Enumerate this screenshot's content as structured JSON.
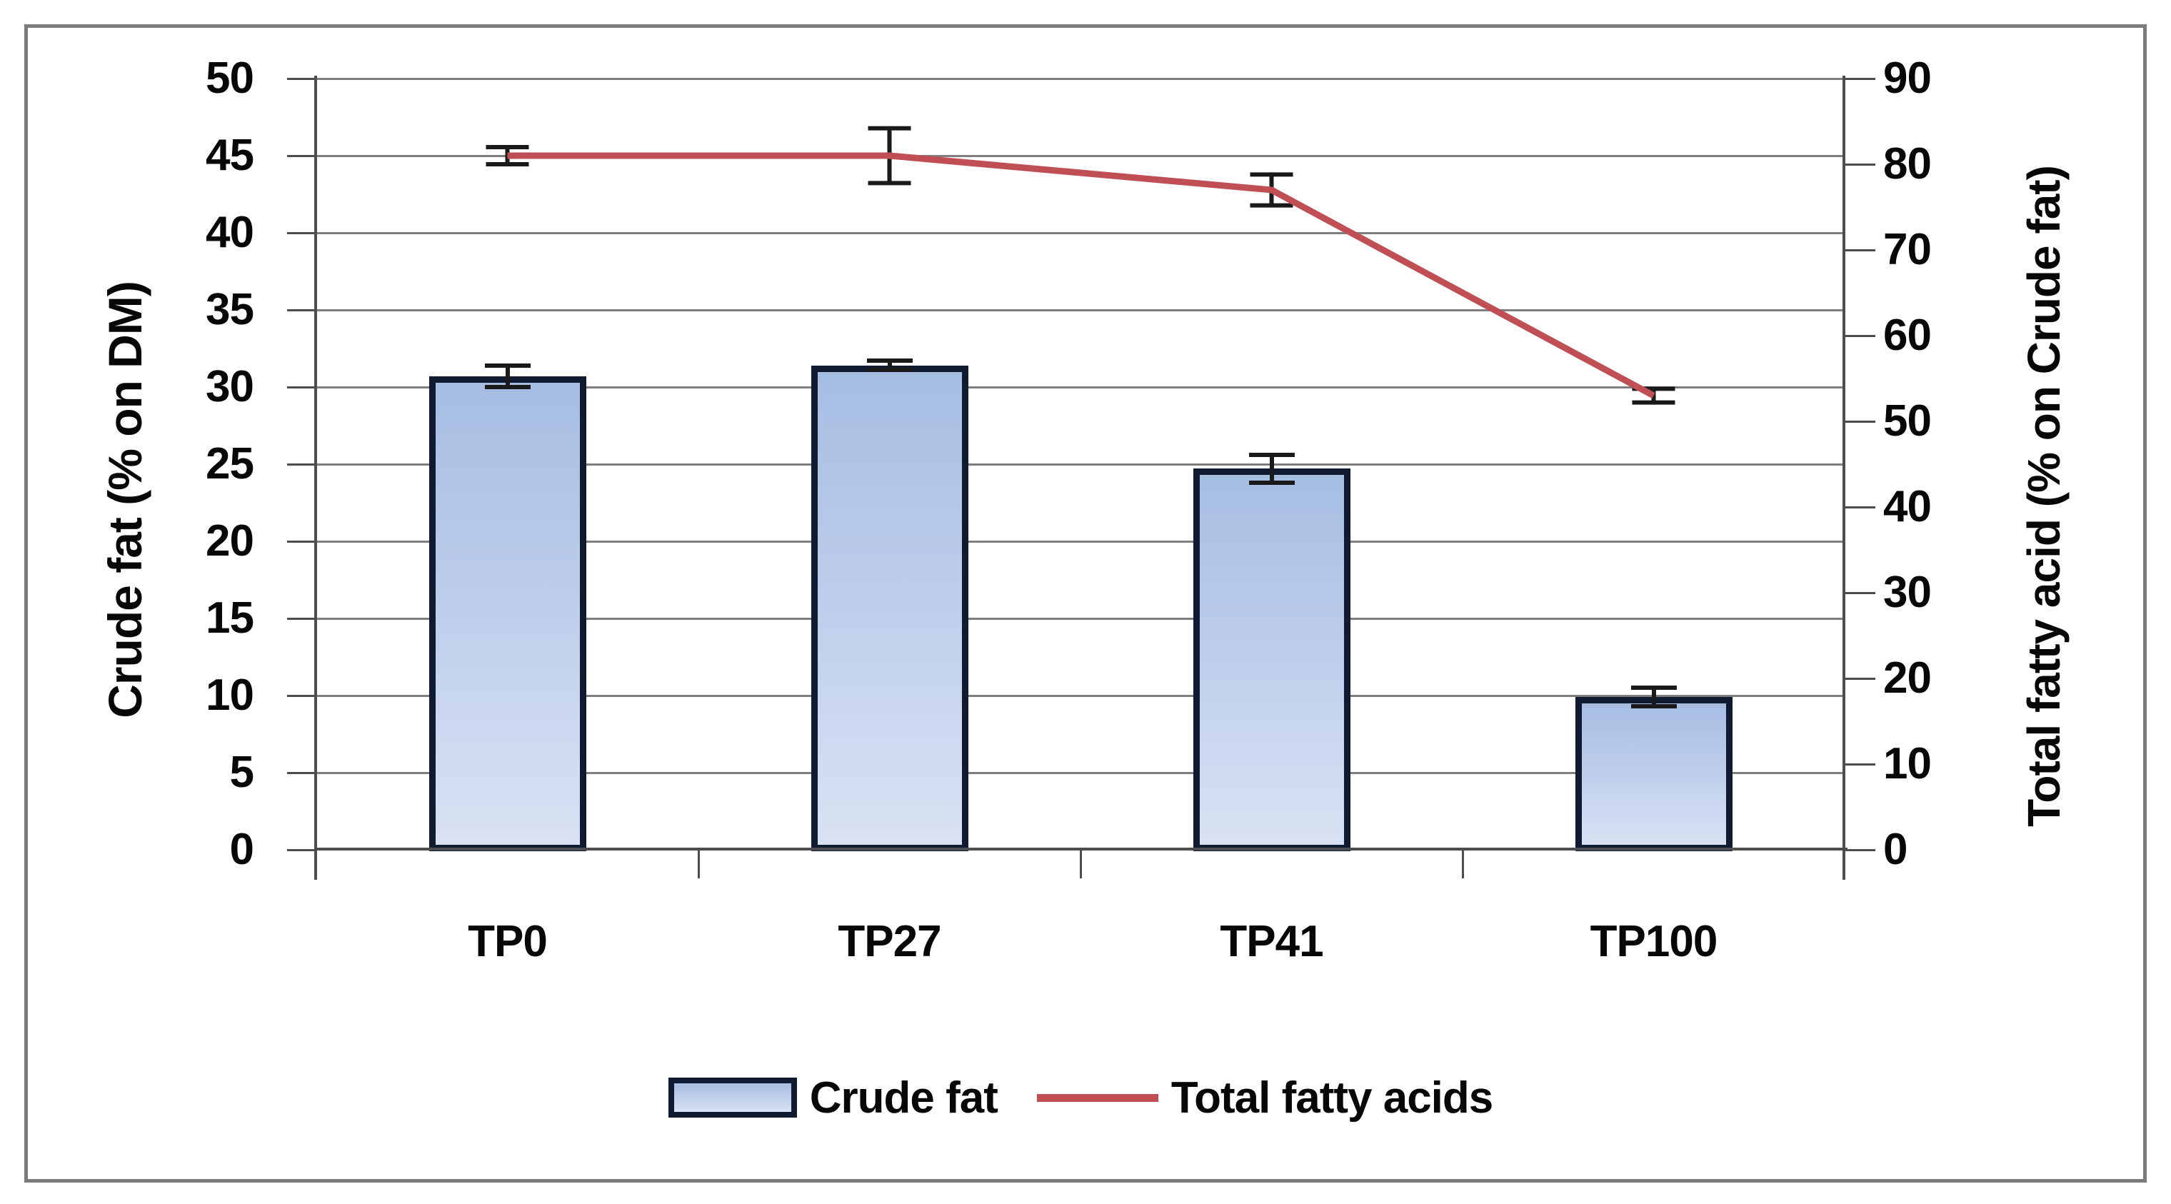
{
  "chart_data": {
    "type": "combo-bar-line",
    "categories": [
      "TP0",
      "TP27",
      "TP41",
      "TP100"
    ],
    "series": [
      {
        "name": "Crude fat",
        "type": "bar",
        "axis": "left",
        "values": [
          30.7,
          31.4,
          24.7,
          9.9
        ],
        "errors": [
          0.7,
          0.3,
          0.9,
          0.6
        ]
      },
      {
        "name": "Total fatty acids",
        "type": "line",
        "axis": "right",
        "values": [
          81,
          81,
          77,
          53
        ],
        "errors": [
          1.0,
          3.2,
          1.8,
          0.8
        ]
      }
    ],
    "left_axis": {
      "title": "Crude fat (% on DM)",
      "min": 0,
      "max": 50,
      "step": 5,
      "tick_labels": [
        "0",
        "5",
        "10",
        "15",
        "20",
        "25",
        "30",
        "35",
        "40",
        "45",
        "50"
      ]
    },
    "right_axis": {
      "title": "Total fatty acid (% on Crude fat)",
      "min": 0,
      "max": 90,
      "step": 10,
      "tick_labels": [
        "0",
        "10",
        "20",
        "30",
        "40",
        "50",
        "60",
        "70",
        "80",
        "90"
      ]
    },
    "grid": true,
    "legend": {
      "position": "bottom",
      "items": [
        {
          "label": "Crude fat",
          "swatch": "bar"
        },
        {
          "label": "Total fatty acids",
          "swatch": "line"
        }
      ]
    },
    "colors": {
      "bar_fill_top": "#a6bde2",
      "bar_fill_mid": "#bccdea",
      "bar_fill_bottom": "#d9e2f4",
      "bar_border": "#101a30",
      "line": "#bf4f55",
      "error_bar": "#1a1a1a",
      "grid": "#7f7f7f",
      "axis": "#4d4d4d",
      "text": "#070707",
      "figure_border": "#7b7b7b",
      "background": "#ffffff"
    }
  }
}
